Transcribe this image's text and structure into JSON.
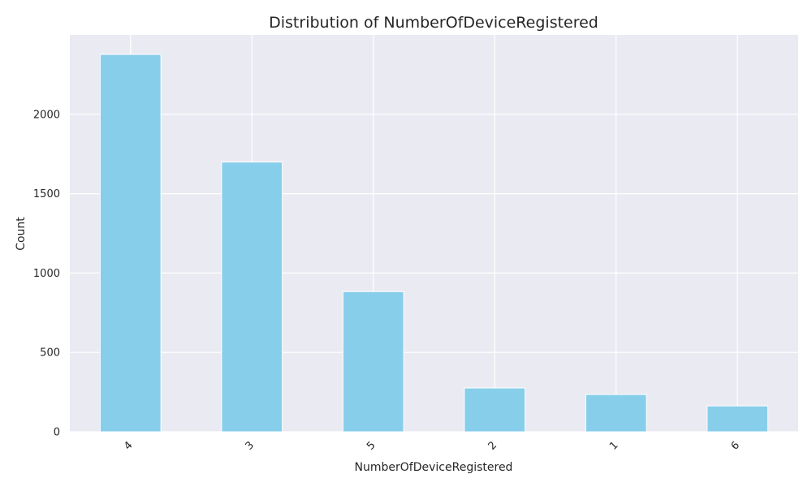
{
  "chart_data": {
    "type": "bar",
    "title": "Distribution of NumberOfDeviceRegistered",
    "xlabel": "NumberOfDeviceRegistered",
    "ylabel": "Count",
    "categories": [
      "4",
      "3",
      "5",
      "2",
      "1",
      "6"
    ],
    "values": [
      2377,
      1699,
      883,
      276,
      235,
      163
    ],
    "ylim": [
      0,
      2500
    ],
    "yticks": [
      0,
      500,
      1000,
      1500,
      2000
    ],
    "grid": true,
    "colors": {
      "bar": "#87ceeb",
      "plot_background": "#eaeaf2",
      "grid": "#ffffff",
      "text": "#262626"
    }
  }
}
